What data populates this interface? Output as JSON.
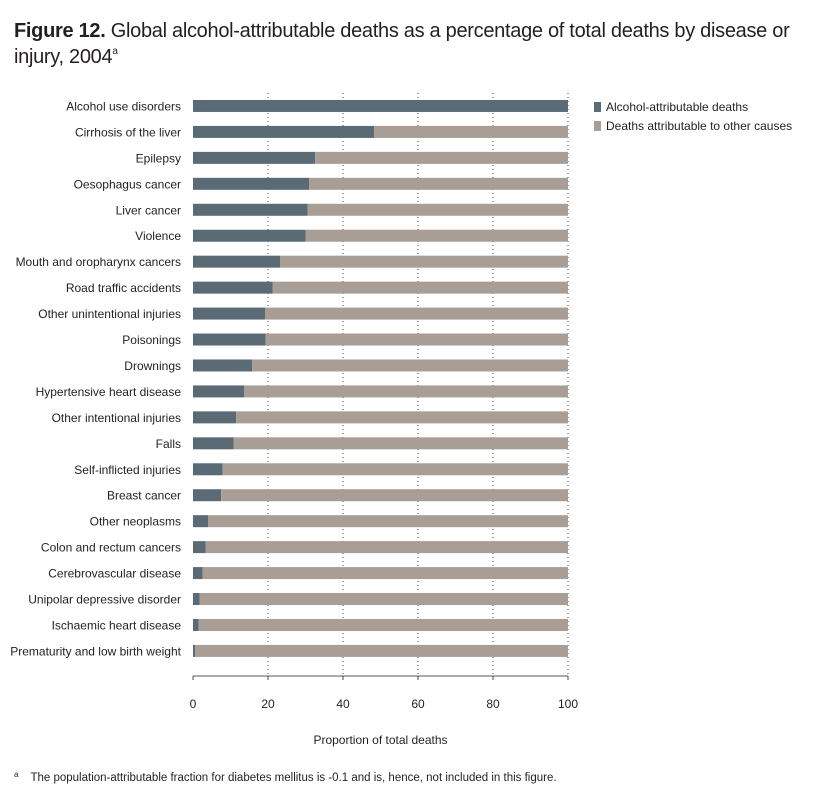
{
  "title": {
    "label": "Figure 12.",
    "text": "Global alcohol-attributable deaths as a percentage of total deaths by disease or injury, 2004",
    "superscript": "a"
  },
  "footnote": {
    "mark": "a",
    "text": "The population-attributable fraction for diabetes mellitus is -0.1 and is, hence, not included in this figure."
  },
  "colors": {
    "alcohol": "#5b6b75",
    "other": "#a89e95",
    "grid": "#444444",
    "axis": "#231f20"
  },
  "chart_data": {
    "type": "bar",
    "orientation": "horizontal",
    "stacked": true,
    "xlabel": "Proportion of total deaths",
    "ylabel": "",
    "xlim": [
      0,
      100
    ],
    "xticks": [
      0,
      20,
      40,
      60,
      80,
      100
    ],
    "grid": "vertical dotted",
    "legend_position": "top-right",
    "categories": [
      "Alcohol use disorders",
      "Cirrhosis of the liver",
      "Epilepsy",
      "Oesophagus cancer",
      "Liver cancer",
      "Violence",
      "Mouth and oropharynx cancers",
      "Road traffic accidents",
      "Other unintentional injuries",
      "Poisonings",
      "Drownings",
      "Hypertensive heart disease",
      "Other intentional injuries",
      "Falls",
      "Self-inflicted injuries",
      "Breast cancer",
      "Other neoplasms",
      "Colon and rectum cancers",
      "Cerebrovascular disease",
      "Unipolar depressive disorder",
      "Ischaemic heart disease",
      "Prematurity and low birth weight"
    ],
    "series": [
      {
        "name": "Alcohol-attributable deaths",
        "values": [
          100,
          48.3,
          32.6,
          31.0,
          30.6,
          30.0,
          23.2,
          21.2,
          19.2,
          19.4,
          15.8,
          13.6,
          11.5,
          10.8,
          7.9,
          7.5,
          4.0,
          3.4,
          2.6,
          1.8,
          1.5,
          0.6
        ]
      },
      {
        "name": "Deaths attributable to other causes",
        "values": [
          0,
          51.7,
          67.4,
          69.0,
          69.4,
          70.0,
          76.8,
          78.8,
          80.8,
          80.6,
          84.2,
          86.4,
          88.5,
          89.2,
          92.1,
          92.5,
          96.0,
          96.6,
          97.4,
          98.2,
          98.5,
          99.4
        ]
      }
    ]
  }
}
